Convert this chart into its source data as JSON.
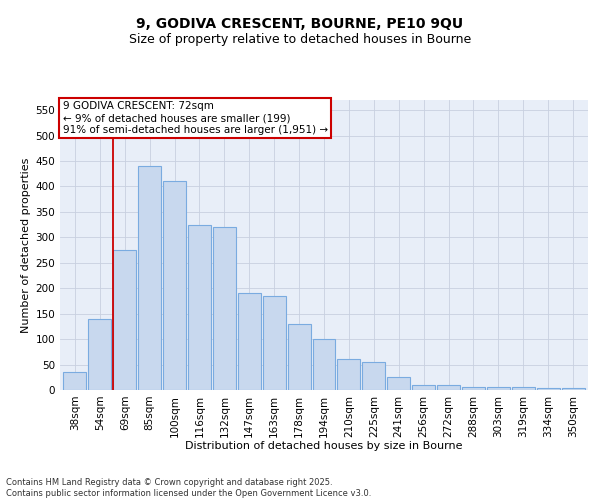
{
  "title": "9, GODIVA CRESCENT, BOURNE, PE10 9QU",
  "subtitle": "Size of property relative to detached houses in Bourne",
  "xlabel": "Distribution of detached houses by size in Bourne",
  "ylabel": "Number of detached properties",
  "categories": [
    "38sqm",
    "54sqm",
    "69sqm",
    "85sqm",
    "100sqm",
    "116sqm",
    "132sqm",
    "147sqm",
    "163sqm",
    "178sqm",
    "194sqm",
    "210sqm",
    "225sqm",
    "241sqm",
    "256sqm",
    "272sqm",
    "288sqm",
    "303sqm",
    "319sqm",
    "334sqm",
    "350sqm"
  ],
  "values": [
    35,
    140,
    275,
    440,
    410,
    325,
    320,
    190,
    185,
    130,
    100,
    60,
    55,
    25,
    10,
    10,
    5,
    5,
    5,
    3,
    3
  ],
  "bar_color": "#c8d8ee",
  "bar_edge_color": "#7aabe0",
  "highlight_line_color": "#cc0000",
  "highlight_line_index": 2,
  "annotation_text": "9 GODIVA CRESCENT: 72sqm\n← 9% of detached houses are smaller (199)\n91% of semi-detached houses are larger (1,951) →",
  "annotation_box_facecolor": "#ffffff",
  "annotation_box_edgecolor": "#cc0000",
  "ylim": [
    0,
    570
  ],
  "yticks": [
    0,
    50,
    100,
    150,
    200,
    250,
    300,
    350,
    400,
    450,
    500,
    550
  ],
  "grid_color": "#c8d0e0",
  "background_color": "#e8eef8",
  "footer_line1": "Contains HM Land Registry data © Crown copyright and database right 2025.",
  "footer_line2": "Contains public sector information licensed under the Open Government Licence v3.0.",
  "title_fontsize": 10,
  "subtitle_fontsize": 9,
  "xlabel_fontsize": 8,
  "ylabel_fontsize": 8,
  "tick_fontsize": 7.5,
  "annot_fontsize": 7.5
}
